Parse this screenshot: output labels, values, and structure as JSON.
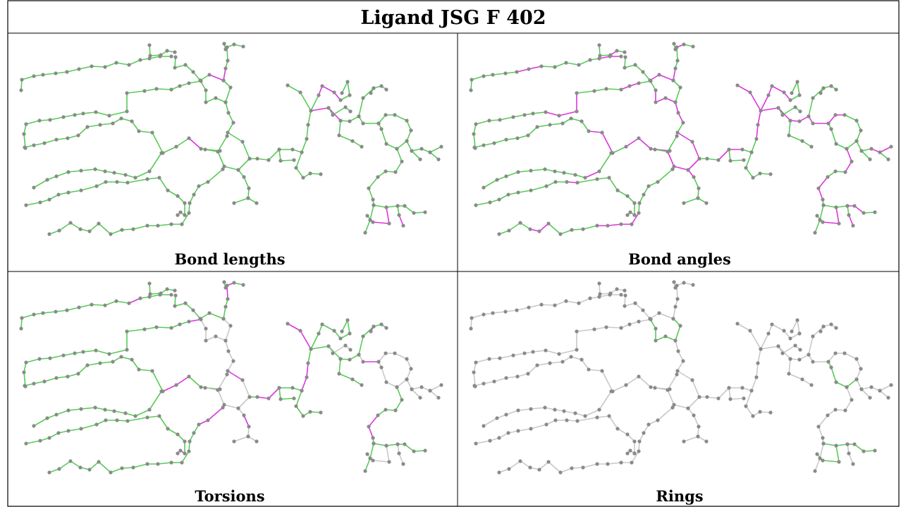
{
  "title": "Ligand JSG F 402",
  "panels": [
    {
      "caption": "Bond lengths"
    },
    {
      "caption": "Bond angles"
    },
    {
      "caption": "Torsions"
    },
    {
      "caption": "Rings"
    }
  ],
  "colors": {
    "outlier": "#dd33dd",
    "ok": "#55cc55",
    "neutral": "#c8c8c8",
    "atom": "#8a8a8a",
    "border": "#000000"
  }
}
